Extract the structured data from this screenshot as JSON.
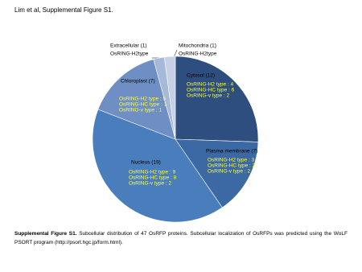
{
  "header": {
    "title": "Lim et al, Supplemental Figure S1."
  },
  "chart_data": {
    "type": "pie",
    "categories": [
      "Cytosol (12)",
      "Plasma membrane (7)",
      "Nucleus (19)",
      "Chloroplast (7)",
      "Extracellular (1)",
      "Mitochondria (1)"
    ],
    "values": [
      12,
      7,
      19,
      7,
      1,
      1
    ],
    "colors": [
      "#2d4e7e",
      "#3c68a3",
      "#4a7dbb",
      "#6e8ec4",
      "#a7b9d9",
      "#c6d1e6"
    ],
    "details": [
      [
        "OsRING-H2 type : 4",
        "OsRING-HC type : 6",
        "OsRING-v type : 2"
      ],
      [
        "OsRING-H2 type : 3",
        "OsRING-HC type : 2",
        "OsRING-v type : 2"
      ],
      [
        "OsRING-H2 type : 9",
        "OsRING-HC type : 8",
        "OsRING-v type : 2"
      ],
      [
        "OsRING-H2 type : 5",
        "OsRING-HC type : 1",
        "OsRING-v type : 1"
      ],
      [
        "OsRING-H2type"
      ],
      [
        "OsRING-H2type"
      ]
    ]
  },
  "caption": {
    "label": "Supplemental Figure S1.",
    "text": "Subcellular distribution of 47 OsRFP proteins. Subcellular localization of OsRFPs was predicted using the WoLF PSORT program (http://psort.hgc.jp/form.html)."
  }
}
